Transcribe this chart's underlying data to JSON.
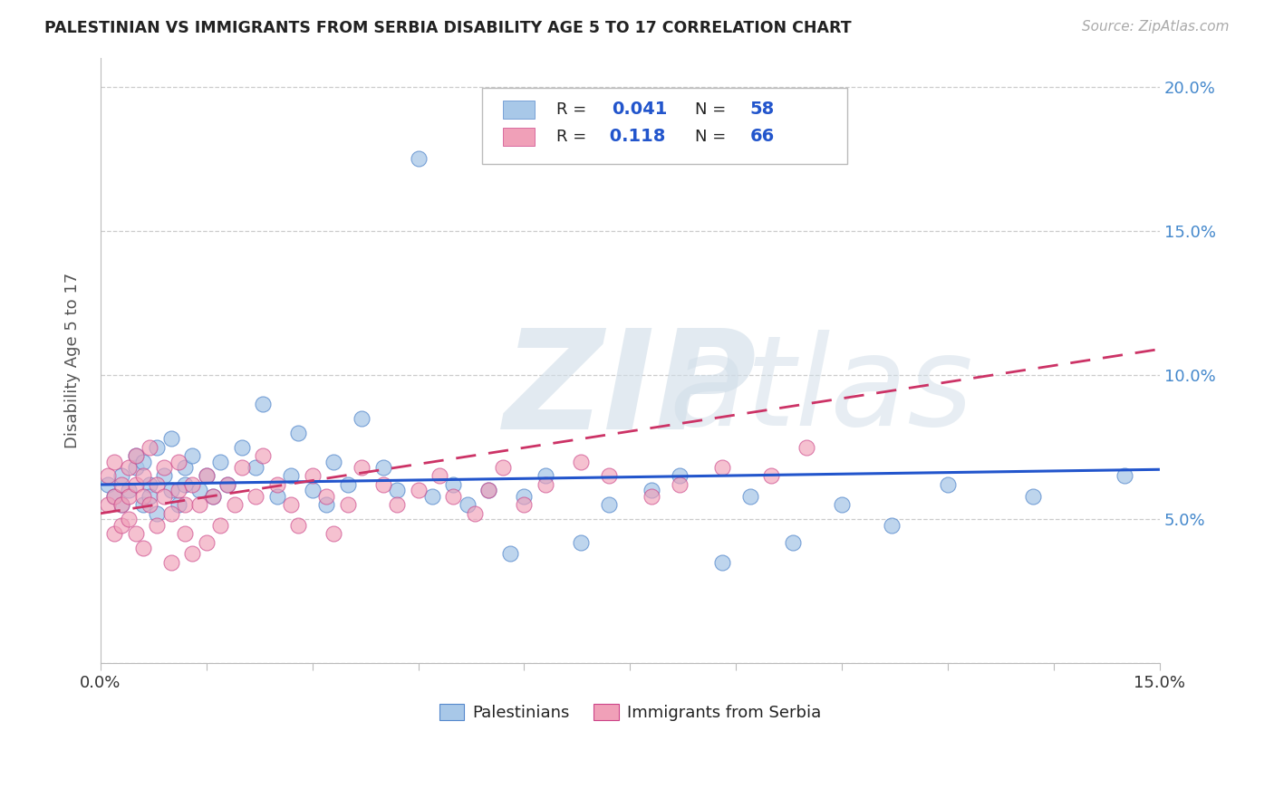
{
  "title": "PALESTINIAN VS IMMIGRANTS FROM SERBIA DISABILITY AGE 5 TO 17 CORRELATION CHART",
  "source": "Source: ZipAtlas.com",
  "ylabel": "Disability Age 5 to 17",
  "xlim": [
    0.0,
    0.15
  ],
  "ylim": [
    0.0,
    0.21
  ],
  "color_blue": "#a8c8e8",
  "color_blue_edge": "#5588cc",
  "color_pink": "#f0a0b8",
  "color_pink_edge": "#cc4488",
  "trendline_blue": "#2255cc",
  "trendline_pink": "#cc3366",
  "legend_text_dark": "#222222",
  "legend_text_blue": "#2255cc",
  "watermark_color": "#d0dde8",
  "grid_color": "#cccccc",
  "axis_color": "#bbbbbb",
  "ylabel_color": "#555555",
  "right_tick_color": "#4488cc",
  "title_color": "#222222",
  "source_color": "#aaaaaa",
  "bottom_label_color": "#222222"
}
